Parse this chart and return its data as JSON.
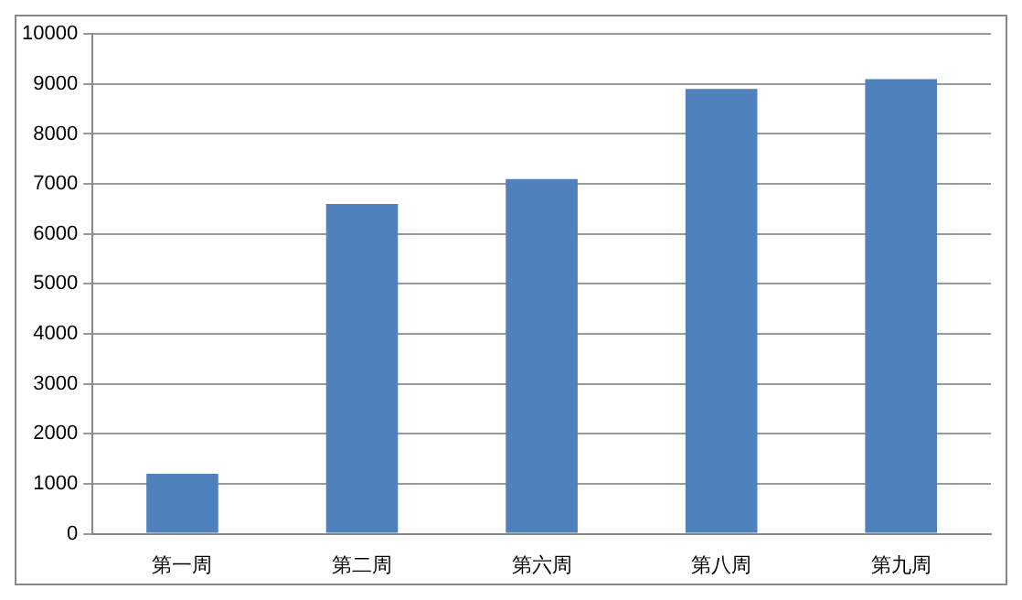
{
  "chart_data": {
    "type": "bar",
    "categories": [
      "第一周",
      "第二周",
      "第六周",
      "第八周",
      "第九周"
    ],
    "values": [
      1200,
      6600,
      7100,
      8900,
      9100
    ],
    "color": "#4f81bd",
    "ylim": [
      0,
      10000
    ],
    "yticks": [
      0,
      1000,
      2000,
      3000,
      4000,
      5000,
      6000,
      7000,
      8000,
      9000,
      10000
    ],
    "grid": "y",
    "legend": false
  }
}
